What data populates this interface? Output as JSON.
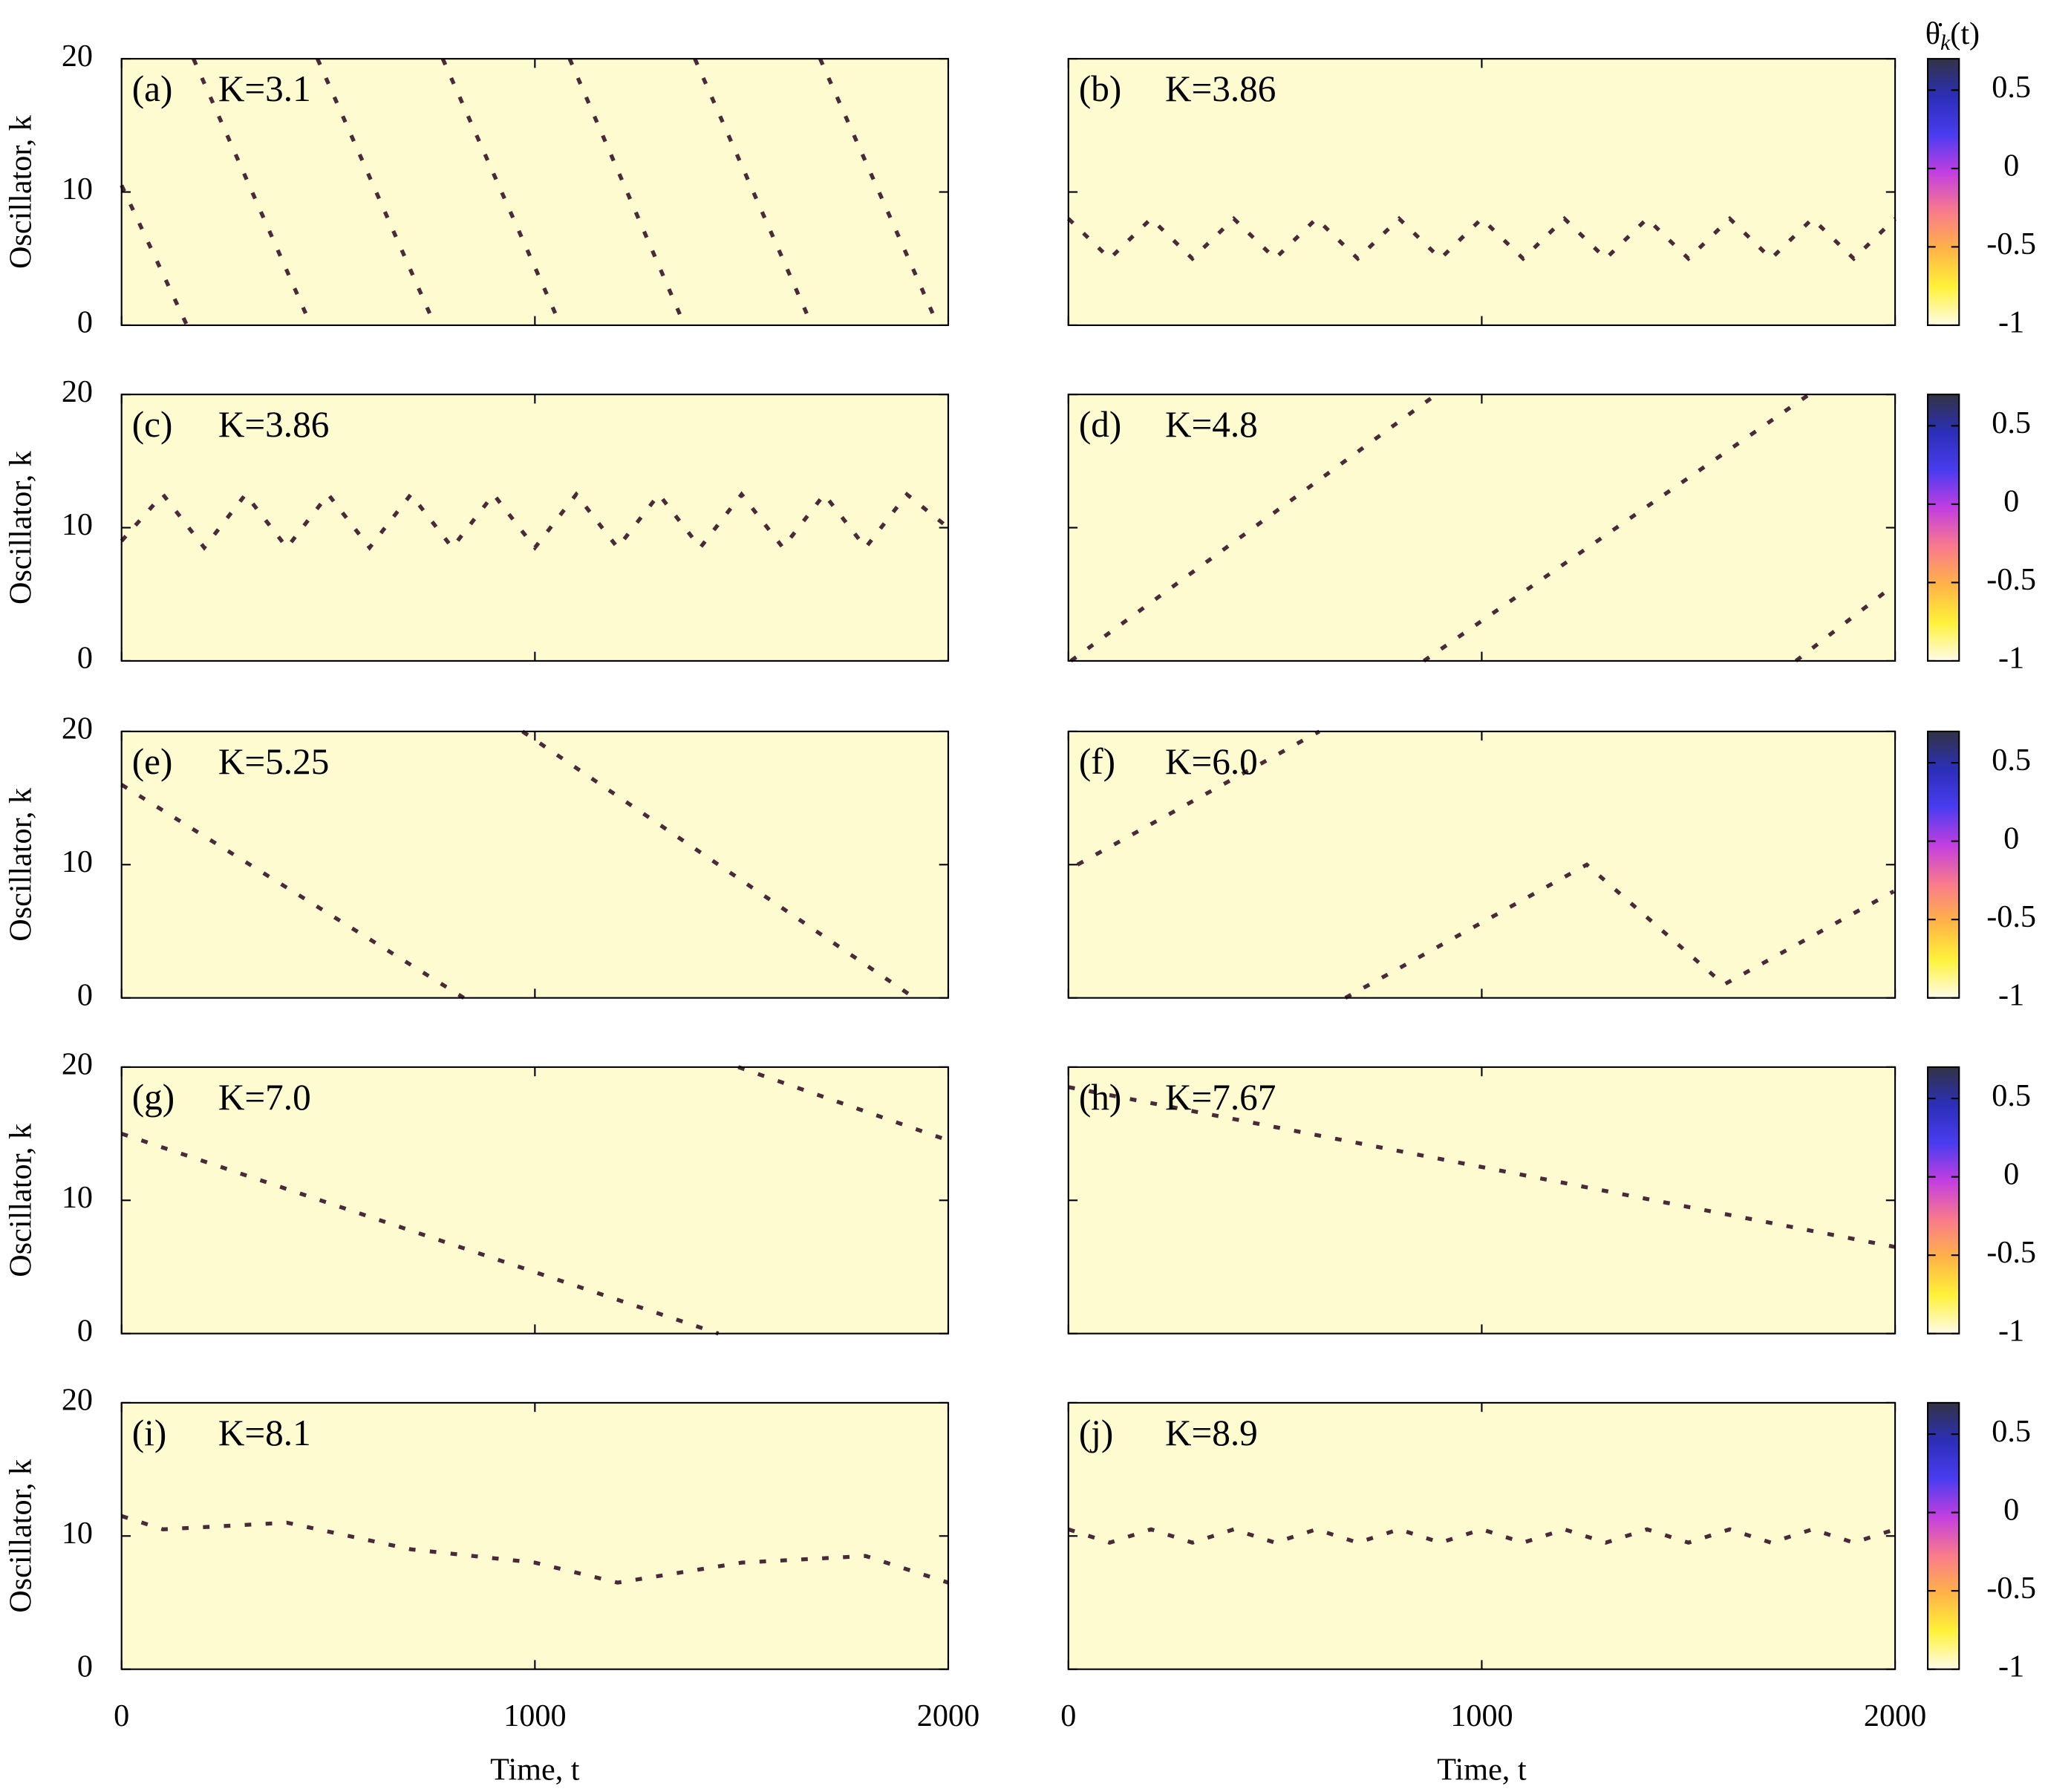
{
  "chart_data": [
    {
      "type": "heatmap",
      "title": "(a)",
      "annotation": "K=3.1",
      "ylabel": "Oscillator, k",
      "xlim": [
        0,
        2000
      ],
      "ylim": [
        0,
        20
      ],
      "xticks": [
        0,
        1000,
        2000
      ],
      "yticks": [
        0,
        10,
        20
      ],
      "tracks": [
        {
          "t": [
            0,
            158
          ],
          "k": [
            10.5,
            0
          ]
        },
        {
          "t": [
            174,
            458
          ],
          "k": [
            20,
            0
          ]
        },
        {
          "t": [
            474,
            758
          ],
          "k": [
            20,
            0
          ]
        },
        {
          "t": [
            777,
            1062
          ],
          "k": [
            20,
            0
          ]
        },
        {
          "t": [
            1084,
            1362
          ],
          "k": [
            20,
            0
          ]
        },
        {
          "t": [
            1387,
            1670
          ],
          "k": [
            20,
            0
          ]
        },
        {
          "t": [
            1690,
            1975
          ],
          "k": [
            20,
            0
          ]
        }
      ]
    },
    {
      "type": "heatmap",
      "title": "(b)",
      "annotation": "K=3.86",
      "xlim": [
        0,
        2000
      ],
      "ylim": [
        0,
        20
      ],
      "xticks": [
        0,
        1000,
        2000
      ],
      "yticks": [
        0,
        10,
        20
      ],
      "tracks": [
        {
          "t": [
            0,
            100,
            200,
            300,
            400,
            500,
            600,
            700,
            800,
            900,
            1000,
            1100,
            1200,
            1300,
            1400,
            1500,
            1600,
            1700,
            1800,
            1900,
            2000
          ],
          "k": [
            8,
            5,
            8,
            5,
            8,
            5,
            8,
            5,
            8,
            5,
            8,
            5,
            8,
            5,
            8,
            5,
            8,
            5,
            8,
            5,
            8
          ]
        }
      ],
      "colorbar": {
        "label": [
          "θ̇",
          "k",
          "(t)"
        ],
        "ylim": [
          -1,
          0.7
        ],
        "ticks": [
          -1,
          -0.5,
          0,
          0.5
        ],
        "colors": [
          "#fffbe8",
          "#fff23a",
          "#ffb347",
          "#f97a8c",
          "#c33fe0",
          "#4a3cf0",
          "#2b2fb8",
          "#333344"
        ]
      }
    },
    {
      "type": "heatmap",
      "title": "(c)",
      "annotation": "K=3.86",
      "ylabel": "Oscillator, k",
      "xlim": [
        0,
        2000
      ],
      "ylim": [
        0,
        20
      ],
      "xticks": [
        0,
        1000,
        2000
      ],
      "yticks": [
        0,
        10,
        20
      ],
      "tracks": [
        {
          "t": [
            0,
            100,
            200,
            300,
            400,
            500,
            600,
            700,
            800,
            900,
            1000,
            1100,
            1200,
            1300,
            1400,
            1500,
            1600,
            1700,
            1800,
            1900,
            2000
          ],
          "k": [
            9,
            12.5,
            8.5,
            12.5,
            8.5,
            12.5,
            8.5,
            12.5,
            8.5,
            12.5,
            8.5,
            12.5,
            8.5,
            12.5,
            8.5,
            12.5,
            8.5,
            12.5,
            8.5,
            12.5,
            10
          ]
        }
      ]
    },
    {
      "type": "heatmap",
      "title": "(d)",
      "annotation": "K=4.8",
      "xlim": [
        0,
        2000
      ],
      "ylim": [
        0,
        20
      ],
      "xticks": [
        0,
        1000,
        2000
      ],
      "yticks": [
        0,
        10,
        20
      ],
      "tracks": [
        {
          "t": [
            6,
            890
          ],
          "k": [
            0,
            20
          ]
        },
        {
          "t": [
            860,
            1792
          ],
          "k": [
            0,
            20
          ]
        },
        {
          "t": [
            1760,
            1990
          ],
          "k": [
            0,
            5.5
          ]
        }
      ],
      "colorbar": {
        "label": [
          "θ̇",
          "k",
          "(t)"
        ],
        "ylim": [
          -1,
          0.7
        ],
        "ticks": [
          -1,
          -0.5,
          0,
          0.5
        ],
        "colors": [
          "#fffbe8",
          "#fff23a",
          "#ffb347",
          "#f97a8c",
          "#c33fe0",
          "#4a3cf0",
          "#2b2fb8",
          "#333344"
        ]
      }
    },
    {
      "type": "heatmap",
      "title": "(e)",
      "annotation": "K=5.25",
      "ylabel": "Oscillator, k",
      "xlim": [
        0,
        2000
      ],
      "ylim": [
        0,
        20
      ],
      "xticks": [
        0,
        1000,
        2000
      ],
      "yticks": [
        0,
        10,
        20
      ],
      "tracks": [
        {
          "t": [
            0,
            828
          ],
          "k": [
            16,
            0
          ]
        },
        {
          "t": [
            970,
            1918
          ],
          "k": [
            20,
            0
          ]
        }
      ]
    },
    {
      "type": "heatmap",
      "title": "(f)",
      "annotation": "K=6.0",
      "xlim": [
        0,
        2000
      ],
      "ylim": [
        0,
        20
      ],
      "xticks": [
        0,
        1000,
        2000
      ],
      "yticks": [
        0,
        10,
        20
      ],
      "tracks": [
        {
          "t": [
            22,
            607
          ],
          "k": [
            10,
            20
          ]
        },
        {
          "t": [
            670,
            1254,
            1586,
            1997
          ],
          "k": [
            0,
            10,
            1,
            8
          ]
        }
      ],
      "colorbar": {
        "label": [
          "θ̇",
          "k",
          "(t)"
        ],
        "ylim": [
          -1,
          0.7
        ],
        "ticks": [
          -1,
          -0.5,
          0,
          0.5
        ],
        "colors": [
          "#fffbe8",
          "#fff23a",
          "#ffb347",
          "#f97a8c",
          "#c33fe0",
          "#4a3cf0",
          "#2b2fb8",
          "#333344"
        ]
      }
    },
    {
      "type": "heatmap",
      "title": "(g)",
      "annotation": "K=7.0",
      "ylabel": "Oscillator, k",
      "xlim": [
        0,
        2000
      ],
      "ylim": [
        0,
        20
      ],
      "xticks": [
        0,
        1000,
        2000
      ],
      "yticks": [
        0,
        10,
        20
      ],
      "tracks": [
        {
          "t": [
            0,
            1444
          ],
          "k": [
            15,
            0
          ]
        },
        {
          "t": [
            1492,
            2000
          ],
          "k": [
            20,
            14.5
          ]
        }
      ]
    },
    {
      "type": "heatmap",
      "title": "(h)",
      "annotation": "K=7.67",
      "xlim": [
        0,
        2000
      ],
      "ylim": [
        0,
        20
      ],
      "xticks": [
        0,
        1000,
        2000
      ],
      "yticks": [
        0,
        10,
        20
      ],
      "tracks": [
        {
          "t": [
            0,
            2000
          ],
          "k": [
            18.5,
            6.5
          ]
        }
      ],
      "colorbar": {
        "label": [
          "θ̇",
          "k",
          "(t)"
        ],
        "ylim": [
          -1,
          0.7
        ],
        "ticks": [
          -1,
          -0.5,
          0,
          0.5
        ],
        "colors": [
          "#fffbe8",
          "#fff23a",
          "#ffb347",
          "#f97a8c",
          "#c33fe0",
          "#4a3cf0",
          "#2b2fb8",
          "#333344"
        ]
      }
    },
    {
      "type": "heatmap",
      "title": "(i)",
      "annotation": "K=8.1",
      "ylabel": "Oscillator, k",
      "xlabel": "Time, t",
      "xlim": [
        0,
        2000
      ],
      "ylim": [
        0,
        20
      ],
      "xticks": [
        0,
        1000,
        2000
      ],
      "yticks": [
        0,
        10,
        20
      ],
      "tracks": [
        {
          "t": [
            0,
            100,
            400,
            700,
            1000,
            1200,
            1500,
            1800,
            2000
          ],
          "k": [
            11.5,
            10.5,
            11,
            9,
            8,
            6.5,
            8,
            8.5,
            6.5
          ]
        }
      ]
    },
    {
      "type": "heatmap",
      "title": "(j)",
      "annotation": "K=8.9",
      "xlabel": "Time, t",
      "xlim": [
        0,
        2000
      ],
      "ylim": [
        0,
        20
      ],
      "xticks": [
        0,
        1000,
        2000
      ],
      "yticks": [
        0,
        10,
        20
      ],
      "tracks": [
        {
          "t": [
            0,
            100,
            200,
            300,
            400,
            500,
            600,
            700,
            800,
            900,
            1000,
            1100,
            1200,
            1300,
            1400,
            1500,
            1600,
            1700,
            1800,
            1900,
            2000
          ],
          "k": [
            10.5,
            9.5,
            10.5,
            9.5,
            10.5,
            9.5,
            10.5,
            9.5,
            10.5,
            9.5,
            10.5,
            9.5,
            10.5,
            9.5,
            10.5,
            9.5,
            10.5,
            9.5,
            10.5,
            9.5,
            10.5
          ]
        }
      ],
      "colorbar": {
        "label": [
          "θ̇",
          "k",
          "(t)"
        ],
        "ylim": [
          -1,
          0.7
        ],
        "ticks": [
          -1,
          -0.5,
          0,
          0.5
        ],
        "colors": [
          "#fffbe8",
          "#fff23a",
          "#ffb347",
          "#f97a8c",
          "#c33fe0",
          "#4a3cf0",
          "#2b2fb8",
          "#333344"
        ]
      }
    }
  ]
}
